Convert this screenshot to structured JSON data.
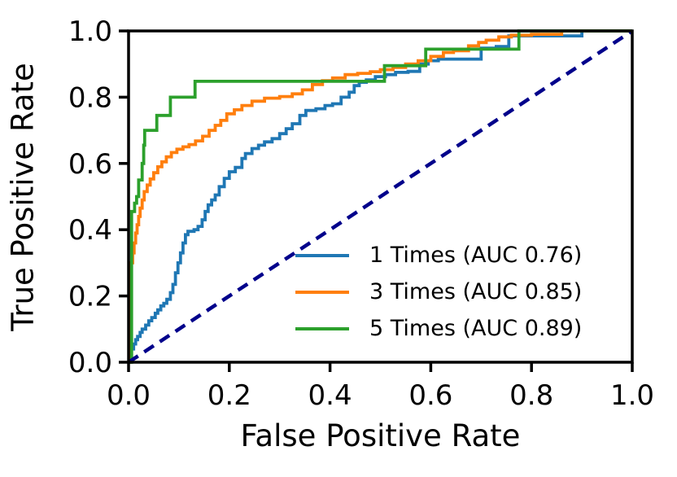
{
  "figure": {
    "background": "#ffffff"
  },
  "chart_data": {
    "type": "line",
    "subtype": "roc-curves",
    "title": "",
    "xlabel": "False Positive Rate",
    "ylabel": "True Positive Rate",
    "xlim": [
      0.0,
      1.0
    ],
    "ylim": [
      0.0,
      1.0
    ],
    "x_ticks": [
      {
        "value": 0.0,
        "label": "0.0"
      },
      {
        "value": 0.2,
        "label": "0.2"
      },
      {
        "value": 0.4,
        "label": "0.4"
      },
      {
        "value": 0.6,
        "label": "0.6"
      },
      {
        "value": 0.8,
        "label": "0.8"
      },
      {
        "value": 1.0,
        "label": "1.0"
      }
    ],
    "y_ticks": [
      {
        "value": 0.0,
        "label": "0.0"
      },
      {
        "value": 0.2,
        "label": "0.2"
      },
      {
        "value": 0.4,
        "label": "0.4"
      },
      {
        "value": 0.6,
        "label": "0.6"
      },
      {
        "value": 0.8,
        "label": "0.8"
      },
      {
        "value": 1.0,
        "label": "1.0"
      }
    ],
    "grid": false,
    "legend_position": "lower right",
    "axis_color": "#000000",
    "series": [
      {
        "name": "1 Times (AUC 0.76)",
        "auc": 0.76,
        "color": "#1f77b4",
        "style": "solid",
        "interpolation": "step-after",
        "points": [
          [
            0.0,
            0.0
          ],
          [
            0.003,
            0.02
          ],
          [
            0.006,
            0.04
          ],
          [
            0.01,
            0.055
          ],
          [
            0.014,
            0.068
          ],
          [
            0.018,
            0.078
          ],
          [
            0.023,
            0.09
          ],
          [
            0.027,
            0.1
          ],
          [
            0.034,
            0.112
          ],
          [
            0.04,
            0.125
          ],
          [
            0.046,
            0.135
          ],
          [
            0.053,
            0.148
          ],
          [
            0.058,
            0.158
          ],
          [
            0.064,
            0.17
          ],
          [
            0.07,
            0.178
          ],
          [
            0.076,
            0.19
          ],
          [
            0.083,
            0.21
          ],
          [
            0.088,
            0.235
          ],
          [
            0.093,
            0.27
          ],
          [
            0.098,
            0.3
          ],
          [
            0.103,
            0.33
          ],
          [
            0.108,
            0.36
          ],
          [
            0.113,
            0.385
          ],
          [
            0.118,
            0.395
          ],
          [
            0.13,
            0.4
          ],
          [
            0.138,
            0.41
          ],
          [
            0.146,
            0.43
          ],
          [
            0.152,
            0.455
          ],
          [
            0.158,
            0.475
          ],
          [
            0.165,
            0.49
          ],
          [
            0.172,
            0.505
          ],
          [
            0.18,
            0.53
          ],
          [
            0.19,
            0.555
          ],
          [
            0.2,
            0.575
          ],
          [
            0.212,
            0.588
          ],
          [
            0.225,
            0.615
          ],
          [
            0.232,
            0.63
          ],
          [
            0.245,
            0.645
          ],
          [
            0.258,
            0.655
          ],
          [
            0.27,
            0.665
          ],
          [
            0.285,
            0.675
          ],
          [
            0.3,
            0.69
          ],
          [
            0.313,
            0.705
          ],
          [
            0.325,
            0.72
          ],
          [
            0.34,
            0.745
          ],
          [
            0.352,
            0.76
          ],
          [
            0.372,
            0.765
          ],
          [
            0.39,
            0.775
          ],
          [
            0.405,
            0.78
          ],
          [
            0.422,
            0.8
          ],
          [
            0.438,
            0.815
          ],
          [
            0.448,
            0.835
          ],
          [
            0.458,
            0.845
          ],
          [
            0.472,
            0.852
          ],
          [
            0.49,
            0.862
          ],
          [
            0.51,
            0.868
          ],
          [
            0.53,
            0.875
          ],
          [
            0.555,
            0.878
          ],
          [
            0.578,
            0.9
          ],
          [
            0.595,
            0.91
          ],
          [
            0.615,
            0.915
          ],
          [
            0.7,
            0.948
          ],
          [
            0.73,
            0.953
          ],
          [
            0.755,
            0.985
          ],
          [
            0.9,
            1.0
          ],
          [
            1.0,
            1.0
          ]
        ]
      },
      {
        "name": "3 Times (AUC 0.85)",
        "auc": 0.85,
        "color": "#ff7f0e",
        "style": "solid",
        "interpolation": "step-after",
        "points": [
          [
            0.0,
            0.0
          ],
          [
            0.003,
            0.26
          ],
          [
            0.005,
            0.3
          ],
          [
            0.008,
            0.33
          ],
          [
            0.011,
            0.36
          ],
          [
            0.014,
            0.39
          ],
          [
            0.017,
            0.415
          ],
          [
            0.02,
            0.44
          ],
          [
            0.023,
            0.465
          ],
          [
            0.027,
            0.49
          ],
          [
            0.031,
            0.515
          ],
          [
            0.037,
            0.535
          ],
          [
            0.043,
            0.553
          ],
          [
            0.05,
            0.572
          ],
          [
            0.058,
            0.59
          ],
          [
            0.066,
            0.605
          ],
          [
            0.075,
            0.62
          ],
          [
            0.085,
            0.633
          ],
          [
            0.096,
            0.643
          ],
          [
            0.108,
            0.65
          ],
          [
            0.12,
            0.657
          ],
          [
            0.133,
            0.668
          ],
          [
            0.147,
            0.682
          ],
          [
            0.16,
            0.7
          ],
          [
            0.172,
            0.715
          ],
          [
            0.183,
            0.73
          ],
          [
            0.195,
            0.75
          ],
          [
            0.21,
            0.762
          ],
          [
            0.225,
            0.775
          ],
          [
            0.245,
            0.788
          ],
          [
            0.27,
            0.797
          ],
          [
            0.3,
            0.802
          ],
          [
            0.325,
            0.81
          ],
          [
            0.345,
            0.822
          ],
          [
            0.365,
            0.838
          ],
          [
            0.385,
            0.85
          ],
          [
            0.405,
            0.858
          ],
          [
            0.43,
            0.868
          ],
          [
            0.455,
            0.872
          ],
          [
            0.48,
            0.877
          ],
          [
            0.5,
            0.883
          ],
          [
            0.525,
            0.89
          ],
          [
            0.55,
            0.9
          ],
          [
            0.575,
            0.91
          ],
          [
            0.6,
            0.923
          ],
          [
            0.625,
            0.935
          ],
          [
            0.645,
            0.94
          ],
          [
            0.675,
            0.955
          ],
          [
            0.695,
            0.965
          ],
          [
            0.71,
            0.972
          ],
          [
            0.735,
            0.982
          ],
          [
            0.76,
            0.987
          ],
          [
            0.8,
            0.99
          ],
          [
            0.86,
            1.0
          ],
          [
            1.0,
            1.0
          ]
        ]
      },
      {
        "name": "5 Times (AUC 0.89)",
        "auc": 0.89,
        "color": "#2ca02c",
        "style": "solid",
        "interpolation": "step-after",
        "points": [
          [
            0.0,
            0.0
          ],
          [
            0.006,
            0.455
          ],
          [
            0.012,
            0.48
          ],
          [
            0.016,
            0.5
          ],
          [
            0.02,
            0.55
          ],
          [
            0.027,
            0.6
          ],
          [
            0.03,
            0.655
          ],
          [
            0.032,
            0.7
          ],
          [
            0.056,
            0.745
          ],
          [
            0.083,
            0.8
          ],
          [
            0.132,
            0.848
          ],
          [
            0.508,
            0.895
          ],
          [
            0.59,
            0.945
          ],
          [
            0.775,
            1.0
          ],
          [
            1.0,
            1.0
          ]
        ]
      }
    ],
    "reference_line": {
      "name": "chance-diagonal",
      "color": "#00008b",
      "style": "dashed",
      "points": [
        [
          0.0,
          0.0
        ],
        [
          1.0,
          1.0
        ]
      ]
    }
  }
}
